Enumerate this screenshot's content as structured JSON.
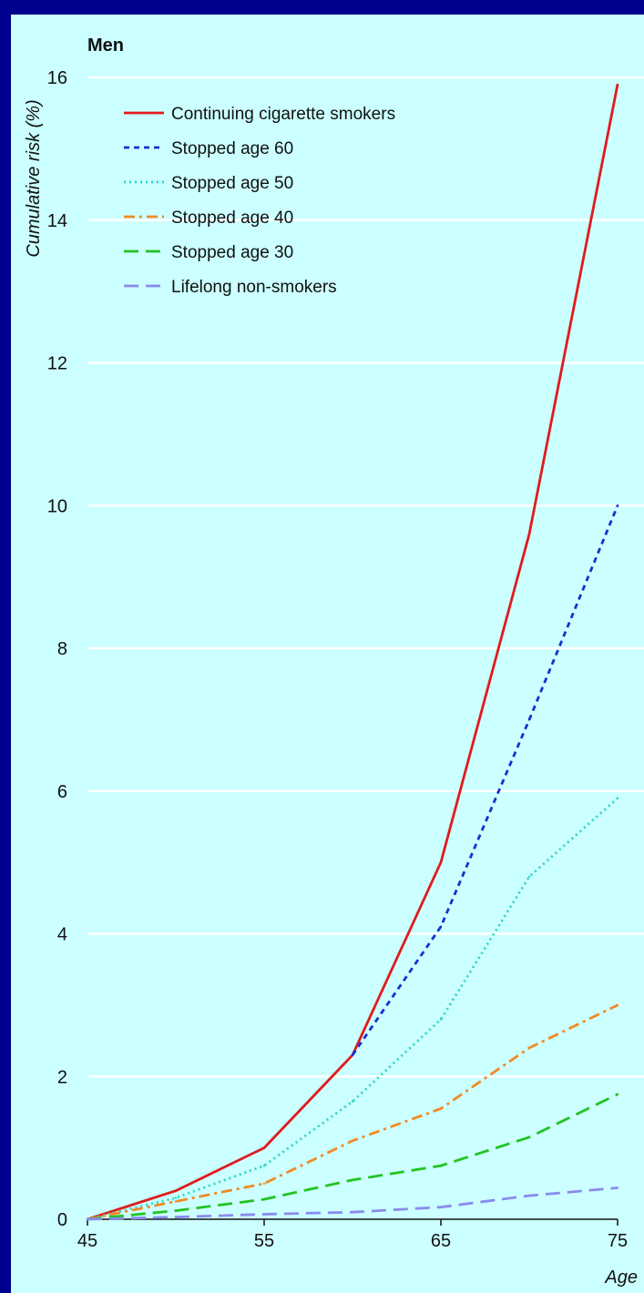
{
  "chart_data": {
    "type": "line",
    "title": "Men",
    "xlabel": "Age",
    "ylabel": "Cumulative risk (%)",
    "xlim": [
      45,
      75
    ],
    "ylim": [
      0,
      16
    ],
    "x_ticks": [
      45,
      55,
      65,
      75
    ],
    "y_ticks": [
      0,
      2,
      4,
      6,
      8,
      10,
      12,
      14,
      16
    ],
    "grid": "horizontal",
    "legend_position": "top-left",
    "background_color": "#ccffff",
    "series": [
      {
        "name": "Continuing cigarette smokers",
        "color": "#e01b1b",
        "dash": "solid",
        "points": [
          [
            45,
            0
          ],
          [
            50,
            0.4
          ],
          [
            55,
            1.0
          ],
          [
            60,
            2.3
          ],
          [
            65,
            5.0
          ],
          [
            70,
            9.6
          ],
          [
            75,
            15.9
          ]
        ]
      },
      {
        "name": "Stopped age 60",
        "color": "#1a2fd0",
        "dash": "short-dash",
        "points": [
          [
            60,
            2.3
          ],
          [
            65,
            4.1
          ],
          [
            70,
            7.0
          ],
          [
            75,
            10.0
          ]
        ]
      },
      {
        "name": "Stopped age 50",
        "color": "#2ad6c8",
        "dash": "dotted",
        "points": [
          [
            45,
            0
          ],
          [
            50,
            0.3
          ],
          [
            55,
            0.75
          ],
          [
            60,
            1.65
          ],
          [
            65,
            2.8
          ],
          [
            70,
            4.8
          ],
          [
            75,
            5.9
          ]
        ]
      },
      {
        "name": "Stopped age 40",
        "color": "#f08a24",
        "dash": "dash-dot",
        "points": [
          [
            45,
            0
          ],
          [
            50,
            0.25
          ],
          [
            55,
            0.5
          ],
          [
            60,
            1.1
          ],
          [
            65,
            1.55
          ],
          [
            70,
            2.4
          ],
          [
            75,
            3.0
          ]
        ]
      },
      {
        "name": "Stopped age 30",
        "color": "#22c322",
        "dash": "long-dash",
        "points": [
          [
            45,
            0
          ],
          [
            50,
            0.12
          ],
          [
            55,
            0.28
          ],
          [
            60,
            0.55
          ],
          [
            65,
            0.75
          ],
          [
            70,
            1.15
          ],
          [
            75,
            1.75
          ]
        ]
      },
      {
        "name": "Lifelong non-smokers",
        "color": "#8a8aee",
        "dash": "long-dash",
        "points": [
          [
            45,
            0
          ],
          [
            50,
            0.03
          ],
          [
            55,
            0.07
          ],
          [
            60,
            0.1
          ],
          [
            65,
            0.17
          ],
          [
            70,
            0.33
          ],
          [
            75,
            0.44
          ]
        ]
      }
    ]
  }
}
